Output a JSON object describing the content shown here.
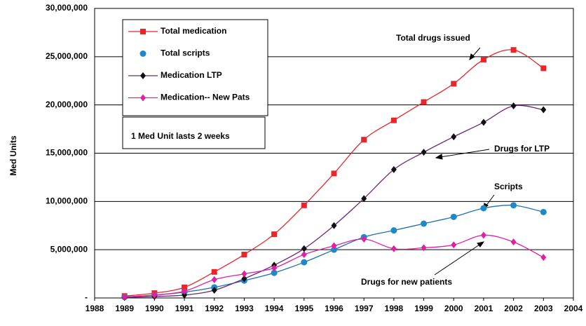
{
  "chart_data": {
    "type": "line",
    "y_label": "Med Units",
    "x": [
      1989,
      1990,
      1991,
      1992,
      1993,
      1994,
      1995,
      1996,
      1997,
      1998,
      1999,
      2000,
      2001,
      2002,
      2003
    ],
    "xlim": [
      1988,
      2004
    ],
    "xticks": [
      1988,
      1989,
      1990,
      1991,
      1992,
      1993,
      1994,
      1995,
      1996,
      1997,
      1998,
      1999,
      2000,
      2001,
      2002,
      2003,
      2004
    ],
    "ylim": [
      0,
      30000000
    ],
    "yticks": [
      {
        "value": 0,
        "label": "-"
      },
      {
        "value": 5000000,
        "label": "5,000,000"
      },
      {
        "value": 10000000,
        "label": "10,000,000"
      },
      {
        "value": 15000000,
        "label": "15,000,000"
      },
      {
        "value": 20000000,
        "label": "20,000,000"
      },
      {
        "value": 25000000,
        "label": "25,000,000"
      },
      {
        "value": 30000000,
        "label": "30,000,000"
      }
    ],
    "grid": true,
    "legend": "upper left",
    "series": [
      {
        "name": "Total medication",
        "color": "#e8262a",
        "marker": "square",
        "marker_color": "#e8262a",
        "values": [
          200000,
          500000,
          1100000,
          2700000,
          4500000,
          6600000,
          9600000,
          12900000,
          16400000,
          18400000,
          20300000,
          22200000,
          24700000,
          25700000,
          23800000
        ]
      },
      {
        "name": "Total scripts",
        "color": "#1e6fb0",
        "marker": "circle",
        "marker_color": "#1e88c8",
        "values": [
          100000,
          300000,
          600000,
          1100000,
          1800000,
          2600000,
          3700000,
          5000000,
          6300000,
          7000000,
          7700000,
          8400000,
          9300000,
          9600000,
          8900000
        ]
      },
      {
        "name": "Medication LTP",
        "color": "#6a2a7a",
        "marker": "diamond",
        "marker_color": "#111111",
        "values": [
          50000,
          150000,
          300000,
          800000,
          2000000,
          3400000,
          5100000,
          7500000,
          10300000,
          13300000,
          15100000,
          16700000,
          18200000,
          19900000,
          19500000
        ]
      },
      {
        "name": "Medication-- New Pats",
        "color": "#e020a0",
        "marker": "diamond",
        "marker_color": "#e020a0",
        "values": [
          100000,
          300000,
          700000,
          1900000,
          2500000,
          3100000,
          4500000,
          5400000,
          6100000,
          5100000,
          5200000,
          5500000,
          6500000,
          5800000,
          4200000
        ]
      }
    ],
    "note": "1 Med Unit lasts 2 weeks",
    "annotations": [
      "Total drugs issued",
      "Drugs for LTP",
      "Scripts",
      "Drugs for new patients"
    ]
  }
}
